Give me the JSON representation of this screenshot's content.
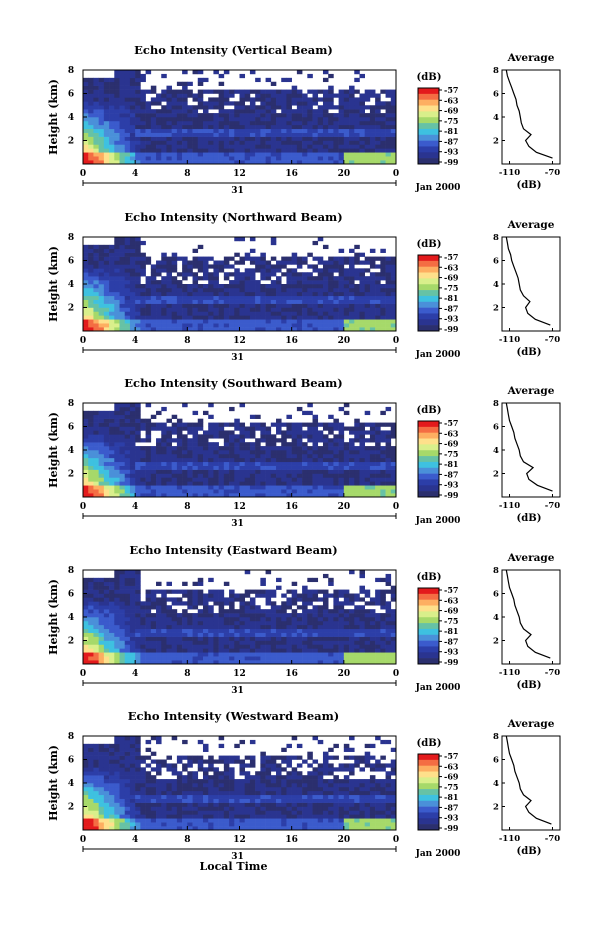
{
  "figure": {
    "xlabel_bottom": "Local Time",
    "date_label": "Jan 2000",
    "date_tick_label": "31",
    "time_ticks": [
      "0",
      "4",
      "8",
      "12",
      "16",
      "20",
      "0"
    ],
    "height_ticks": [
      "8",
      "6",
      "4",
      "2"
    ],
    "colorbar_unit": "(dB)",
    "colorbar_levels": [
      "-57",
      "-63",
      "-69",
      "-75",
      "-81",
      "-87",
      "-93",
      "-99"
    ],
    "colorbar_colors": [
      "#e31a1c",
      "#f46d43",
      "#fdae61",
      "#fee08b",
      "#d9ef8b",
      "#a6d96a",
      "#66c2a5",
      "#3ec1e0",
      "#4a90d9",
      "#3b5bcc",
      "#2c3ea8",
      "#2a3490",
      "#2b2f6e"
    ],
    "average_title": "Average",
    "average_xticks": [
      "-110",
      "-70"
    ],
    "average_xlabel": "(dB)",
    "ylabel": "Height (km)"
  },
  "chart_data": [
    {
      "type": "heatmap",
      "title": "Echo Intensity (Vertical Beam)",
      "ylabel": "Height (km)",
      "xlabel": "",
      "x_range_hours": [
        0,
        24
      ],
      "y_range_km": [
        0,
        8
      ],
      "z_range_db": [
        -99,
        -57
      ],
      "average_profile": {
        "heights_km": [
          0.5,
          1,
          1.5,
          2,
          2.5,
          3,
          3.5,
          4,
          4.5,
          5,
          5.5,
          6,
          6.5,
          7,
          7.5,
          8
        ],
        "values_db": [
          -70,
          -85,
          -92,
          -95,
          -90,
          -97,
          -99,
          -100,
          -101,
          -103,
          -104,
          -106,
          -108,
          -110,
          -112,
          -113
        ]
      }
    },
    {
      "type": "heatmap",
      "title": "Echo Intensity (Northward Beam)",
      "ylabel": "Height (km)",
      "xlabel": "",
      "x_range_hours": [
        0,
        24
      ],
      "y_range_km": [
        0,
        8
      ],
      "z_range_db": [
        -99,
        -57
      ],
      "average_profile": {
        "heights_km": [
          0.5,
          1,
          1.5,
          2,
          2.5,
          3,
          3.5,
          4,
          4.5,
          5,
          5.5,
          6,
          6.5,
          7,
          7.5,
          8
        ],
        "values_db": [
          -72,
          -86,
          -93,
          -95,
          -91,
          -97,
          -100,
          -101,
          -102,
          -104,
          -106,
          -108,
          -109,
          -111,
          -112,
          -113
        ]
      }
    },
    {
      "type": "heatmap",
      "title": "Echo Intensity (Southward Beam)",
      "ylabel": "Height (km)",
      "xlabel": "",
      "x_range_hours": [
        0,
        24
      ],
      "y_range_km": [
        0,
        8
      ],
      "z_range_db": [
        -99,
        -57
      ],
      "average_profile": {
        "heights_km": [
          0.5,
          1,
          1.5,
          2,
          2.5,
          3,
          3.5,
          4,
          4.5,
          5,
          5.5,
          6,
          6.5,
          7,
          7.5,
          8
        ],
        "values_db": [
          -70,
          -84,
          -92,
          -94,
          -88,
          -97,
          -100,
          -101,
          -103,
          -105,
          -106,
          -108,
          -110,
          -111,
          -112,
          -113
        ]
      }
    },
    {
      "type": "heatmap",
      "title": "Echo Intensity (Eastward Beam)",
      "ylabel": "Height (km)",
      "xlabel": "",
      "x_range_hours": [
        0,
        24
      ],
      "y_range_km": [
        0,
        8
      ],
      "z_range_db": [
        -99,
        -57
      ],
      "average_profile": {
        "heights_km": [
          0.5,
          1,
          1.5,
          2,
          2.5,
          3,
          3.5,
          4,
          4.5,
          5,
          5.5,
          6,
          6.5,
          7,
          7.5,
          8
        ],
        "values_db": [
          -72,
          -86,
          -93,
          -95,
          -90,
          -97,
          -100,
          -101,
          -103,
          -105,
          -106,
          -108,
          -110,
          -111,
          -112,
          -113
        ]
      }
    },
    {
      "type": "heatmap",
      "title": "Echo Intensity (Westward Beam)",
      "ylabel": "Height (km)",
      "xlabel": "Local Time",
      "x_range_hours": [
        0,
        24
      ],
      "y_range_km": [
        0,
        8
      ],
      "z_range_db": [
        -99,
        -57
      ],
      "average_profile": {
        "heights_km": [
          0.5,
          1,
          1.5,
          2,
          2.5,
          3,
          3.5,
          4,
          4.5,
          5,
          5.5,
          6,
          6.5,
          7,
          7.5,
          8
        ],
        "values_db": [
          -71,
          -85,
          -92,
          -95,
          -90,
          -97,
          -100,
          -101,
          -103,
          -105,
          -106,
          -108,
          -110,
          -111,
          -112,
          -113
        ]
      }
    }
  ]
}
